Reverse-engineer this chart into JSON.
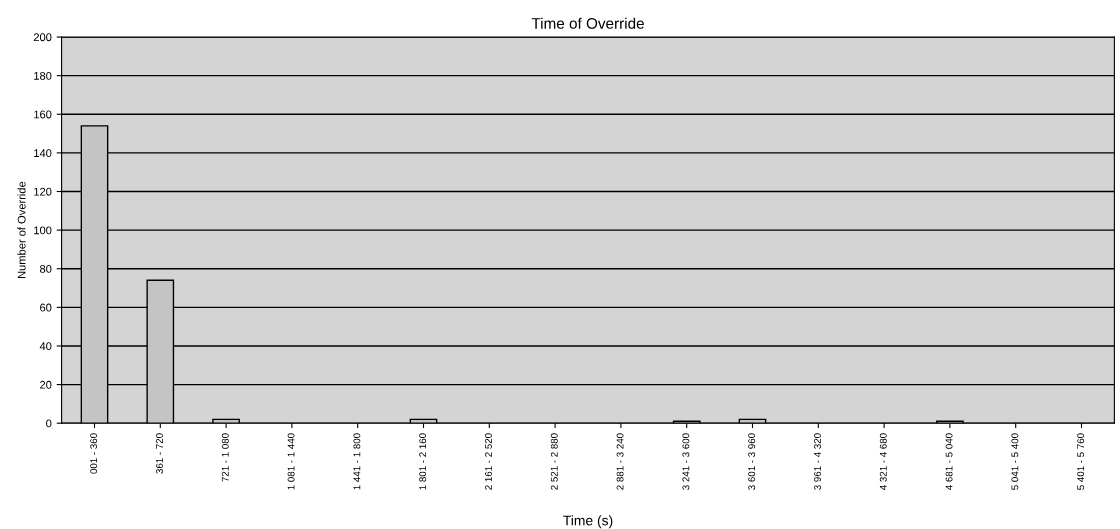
{
  "chart_data": {
    "type": "bar",
    "title": "Time of Override",
    "xlabel": "Time (s)",
    "ylabel": "Number of Override",
    "categories": [
      "001 - 360",
      "361 - 720",
      "721 - 1 080",
      "1 081 - 1 440",
      "1 441 - 1 800",
      "1 801 - 2 160",
      "2 161 - 2 520",
      "2 521 - 2 880",
      "2 881 - 3 240",
      "3 241 - 3 600",
      "3 601 - 3 960",
      "3 961 - 4 320",
      "4 321 - 4 680",
      "4 681 - 5 040",
      "5 041 - 5 400",
      "5 401 - 5 760"
    ],
    "values": [
      154,
      74,
      2,
      0,
      0,
      2,
      0,
      0,
      0,
      1,
      2,
      0,
      0,
      1,
      0,
      0
    ],
    "color": "#c4c4c4",
    "ylim": [
      0,
      200
    ],
    "yticks": [
      0,
      20,
      40,
      60,
      80,
      100,
      120,
      140,
      160,
      180,
      200
    ],
    "grid": "y",
    "legend": false
  }
}
